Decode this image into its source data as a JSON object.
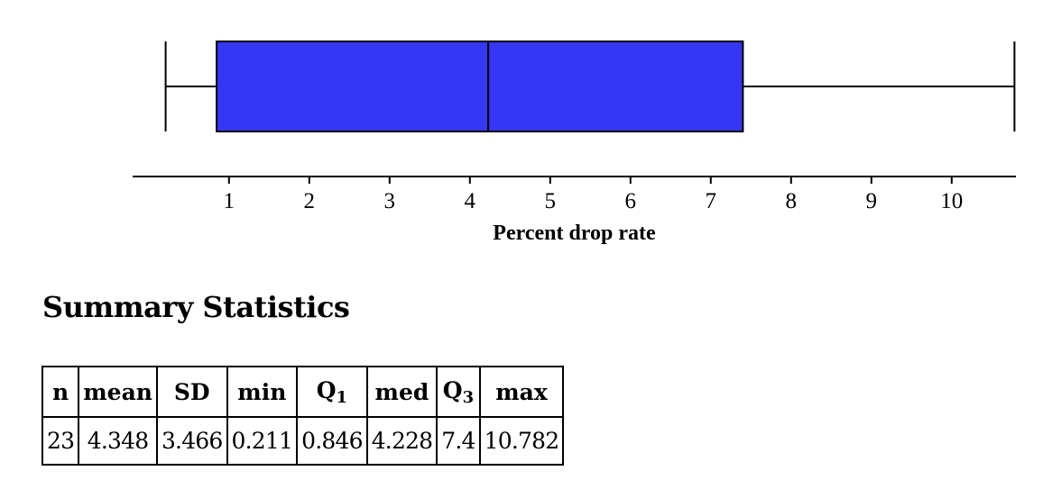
{
  "chart_data": {
    "type": "boxplot",
    "orientation": "horizontal",
    "xlabel": "Percent drop rate",
    "xlim": [
      -0.2,
      10.8
    ],
    "ticks": [
      1,
      2,
      3,
      4,
      5,
      6,
      7,
      8,
      9,
      10
    ],
    "tick_labels": [
      "1",
      "2",
      "3",
      "4",
      "5",
      "6",
      "7",
      "8",
      "9",
      "10"
    ],
    "box_color": "#3636f5",
    "stats": {
      "min": 0.211,
      "q1": 0.846,
      "median": 4.228,
      "q3": 7.4,
      "max": 10.782
    }
  },
  "summary": {
    "title": "Summary Statistics",
    "headers": {
      "n": "n",
      "mean": "mean",
      "sd": "SD",
      "min": "min",
      "q1_main": "Q",
      "q1_sub": "1",
      "med": "med",
      "q3_main": "Q",
      "q3_sub": "3",
      "max": "max"
    },
    "values": {
      "n": "23",
      "mean": "4.348",
      "sd": "3.466",
      "min": "0.211",
      "q1": "0.846",
      "med": "4.228",
      "q3": "7.4",
      "max": "10.782"
    }
  }
}
